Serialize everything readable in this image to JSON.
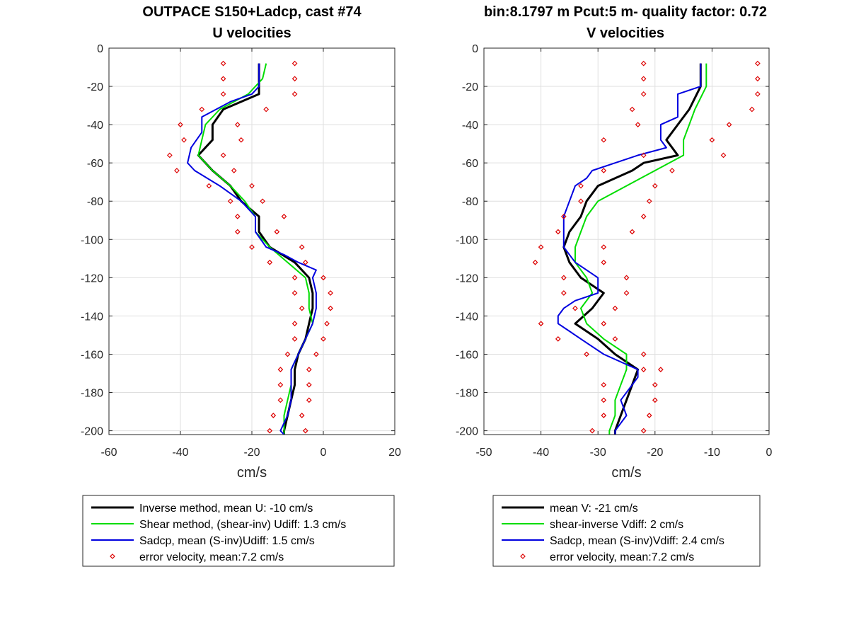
{
  "chart_data": [
    {
      "type": "line",
      "title": [
        "OUTPACE S150+Ladcp, cast #74",
        "U velocities"
      ],
      "xlabel": "cm/s",
      "ylabel": "",
      "xlim": [
        -60,
        20
      ],
      "ylim": [
        -202,
        0
      ],
      "xticks": [
        -60,
        -40,
        -20,
        0,
        20
      ],
      "yticks": [
        0,
        -20,
        -40,
        -60,
        -80,
        -100,
        -120,
        -140,
        -160,
        -180,
        -200
      ],
      "grid": true,
      "legend_position": "below",
      "series": [
        {
          "name": "Inverse method, mean U:  -10 cm/s",
          "color": "#000000",
          "style": "line",
          "y": [
            -8,
            -16,
            -24,
            -32,
            -40,
            -48,
            -56,
            -64,
            -72,
            -80,
            -88,
            -96,
            -104,
            -112,
            -120,
            -128,
            -136,
            -144,
            -152,
            -160,
            -168,
            -176,
            -184,
            -192,
            -200,
            -202
          ],
          "x": [
            -18,
            -18,
            -18,
            -28,
            -31,
            -31,
            -35,
            -31,
            -26,
            -23,
            -18,
            -18,
            -15,
            -8,
            -4,
            -3,
            -3,
            -4,
            -5,
            -7,
            -8,
            -8,
            -9,
            -10,
            -11,
            -11
          ]
        },
        {
          "name": "Shear method, (shear-inv)  Udiff:  1.3 cm/s",
          "color": "#00dd00",
          "style": "line",
          "y": [
            -8,
            -16,
            -24,
            -32,
            -40,
            -48,
            -56,
            -64,
            -72,
            -80,
            -88,
            -96,
            -104,
            -112,
            -120,
            -128,
            -136,
            -144,
            -152,
            -160,
            -168,
            -176,
            -184,
            -192,
            -200,
            -202
          ],
          "x": [
            -16,
            -17,
            -21,
            -29,
            -33,
            -34,
            -35,
            -31,
            -26,
            -22,
            -19,
            -19,
            -15,
            -10,
            -5,
            -4,
            -4,
            -3,
            -5,
            -7,
            -9,
            -9,
            -10,
            -11,
            -11,
            -11
          ]
        },
        {
          "name": "Sadcp, mean (S-inv)Udiff: 1.5 cm/s",
          "color": "#0000e0",
          "style": "line",
          "y": [
            -8,
            -16,
            -20,
            -24,
            -28,
            -32,
            -36,
            -44,
            -52,
            -60,
            -64,
            -72,
            -80,
            -88,
            -96,
            -104,
            -108,
            -112,
            -116,
            -120,
            -128,
            -136,
            -144,
            -152,
            -160,
            -168,
            -176,
            -184,
            -192,
            -200,
            -202
          ],
          "x": [
            -18,
            -18,
            -18,
            -20,
            -26,
            -30,
            -34,
            -34,
            -37,
            -38,
            -36,
            -29,
            -23,
            -19,
            -19,
            -16,
            -11,
            -7,
            -2,
            -3,
            -2,
            -2,
            -3,
            -5,
            -7,
            -9,
            -9,
            -9,
            -10,
            -12,
            -11
          ]
        },
        {
          "name": "error velocity, mean:7.2 cm/s",
          "color": "#dd0000",
          "style": "markers",
          "y": [
            -8,
            -8,
            -16,
            -16,
            -24,
            -24,
            -32,
            -32,
            -40,
            -40,
            -48,
            -48,
            -56,
            -56,
            -64,
            -64,
            -72,
            -72,
            -80,
            -80,
            -88,
            -88,
            -96,
            -96,
            -104,
            -104,
            -112,
            -112,
            -120,
            -120,
            -128,
            -128,
            -136,
            -136,
            -144,
            -144,
            -152,
            -152,
            -160,
            -160,
            -168,
            -168,
            -176,
            -176,
            -184,
            -184,
            -192,
            -192,
            -200,
            -200
          ],
          "x": [
            -28,
            -8,
            -28,
            -8,
            -28,
            -8,
            -34,
            -16,
            -40,
            -24,
            -39,
            -23,
            -43,
            -28,
            -41,
            -25,
            -32,
            -20,
            -26,
            -17,
            -24,
            -11,
            -24,
            -13,
            -20,
            -6,
            -15,
            -5,
            -8,
            0,
            -8,
            2,
            -6,
            2,
            -8,
            1,
            -8,
            0,
            -10,
            -2,
            -12,
            -4,
            -12,
            -4,
            -12,
            -4,
            -14,
            -6,
            -15,
            -5
          ]
        }
      ]
    },
    {
      "type": "line",
      "title": [
        "bin:8.1797 m  Pcut:5 m- quality factor:  0.72",
        "V velocities"
      ],
      "xlabel": "cm/s",
      "ylabel": "",
      "xlim": [
        -50,
        0
      ],
      "ylim": [
        -202,
        0
      ],
      "xticks": [
        -50,
        -40,
        -30,
        -20,
        -10,
        0
      ],
      "yticks": [
        0,
        -20,
        -40,
        -60,
        -80,
        -100,
        -120,
        -140,
        -160,
        -180,
        -200
      ],
      "grid": true,
      "legend_position": "below",
      "series": [
        {
          "name": "mean V:  -21 cm/s",
          "color": "#000000",
          "style": "line",
          "y": [
            -8,
            -20,
            -32,
            -40,
            -48,
            -56,
            -60,
            -64,
            -72,
            -80,
            -88,
            -96,
            -104,
            -112,
            -120,
            -128,
            -136,
            -144,
            -152,
            -160,
            -168,
            -176,
            -184,
            -192,
            -200,
            -202
          ],
          "x": [
            -12,
            -12,
            -14,
            -16,
            -18,
            -16,
            -22,
            -24,
            -30,
            -32,
            -33,
            -35,
            -36,
            -35,
            -33,
            -29,
            -31,
            -34,
            -30,
            -27,
            -23,
            -24,
            -25,
            -26,
            -27,
            -27
          ]
        },
        {
          "name": "shear-inverse Vdiff:  2 cm/s",
          "color": "#00dd00",
          "style": "line",
          "y": [
            -8,
            -20,
            -32,
            -40,
            -48,
            -56,
            -64,
            -72,
            -80,
            -88,
            -96,
            -104,
            -112,
            -120,
            -128,
            -136,
            -144,
            -152,
            -160,
            -168,
            -176,
            -184,
            -192,
            -200,
            -202
          ],
          "x": [
            -11,
            -11,
            -13,
            -14,
            -15,
            -15,
            -20,
            -25,
            -30,
            -32,
            -33,
            -34,
            -34,
            -32,
            -31,
            -33,
            -32,
            -29,
            -25,
            -25,
            -26,
            -27,
            -27,
            -28,
            -28
          ]
        },
        {
          "name": "Sadcp, mean (S-inv)Vdiff: 2.4 cm/s",
          "color": "#0000e0",
          "style": "line",
          "y": [
            -8,
            -20,
            -24,
            -28,
            -36,
            -40,
            -48,
            -52,
            -56,
            -60,
            -64,
            -68,
            -72,
            -80,
            -88,
            -96,
            -104,
            -112,
            -120,
            -124,
            -128,
            -132,
            -136,
            -140,
            -144,
            -148,
            -152,
            -160,
            -168,
            -172,
            -176,
            -184,
            -192,
            -200,
            -202
          ],
          "x": [
            -12,
            -12,
            -16,
            -16,
            -16,
            -19,
            -19,
            -18,
            -23,
            -27,
            -31,
            -32,
            -34,
            -35,
            -36,
            -36,
            -36,
            -34,
            -30,
            -30,
            -30,
            -34,
            -36,
            -37,
            -37,
            -35,
            -33,
            -29,
            -23,
            -23,
            -24,
            -26,
            -25,
            -27,
            -27
          ]
        },
        {
          "name": "error velocity, mean:7.2 cm/s",
          "color": "#dd0000",
          "style": "markers",
          "y": [
            -8,
            -8,
            -16,
            -16,
            -24,
            -24,
            -32,
            -32,
            -40,
            -40,
            -48,
            -48,
            -56,
            -56,
            -64,
            -64,
            -72,
            -72,
            -80,
            -80,
            -88,
            -88,
            -96,
            -96,
            -104,
            -104,
            -112,
            -112,
            -120,
            -120,
            -128,
            -128,
            -136,
            -136,
            -144,
            -144,
            -152,
            -152,
            -160,
            -160,
            -168,
            -168,
            -176,
            -176,
            -184,
            -184,
            -192,
            -192,
            -200,
            -200
          ],
          "x": [
            -22,
            -2,
            -22,
            -2,
            -22,
            -2,
            -24,
            -3,
            -23,
            -7,
            -29,
            -10,
            -22,
            -8,
            -29,
            -17,
            -33,
            -20,
            -33,
            -21,
            -36,
            -22,
            -37,
            -24,
            -40,
            -29,
            -41,
            -29,
            -36,
            -25,
            -36,
            -25,
            -34,
            -27,
            -40,
            -29,
            -37,
            -27,
            -32,
            -22,
            -22,
            -19,
            -29,
            -20,
            -29,
            -20,
            -29,
            -21,
            -31,
            -22
          ]
        }
      ]
    }
  ]
}
